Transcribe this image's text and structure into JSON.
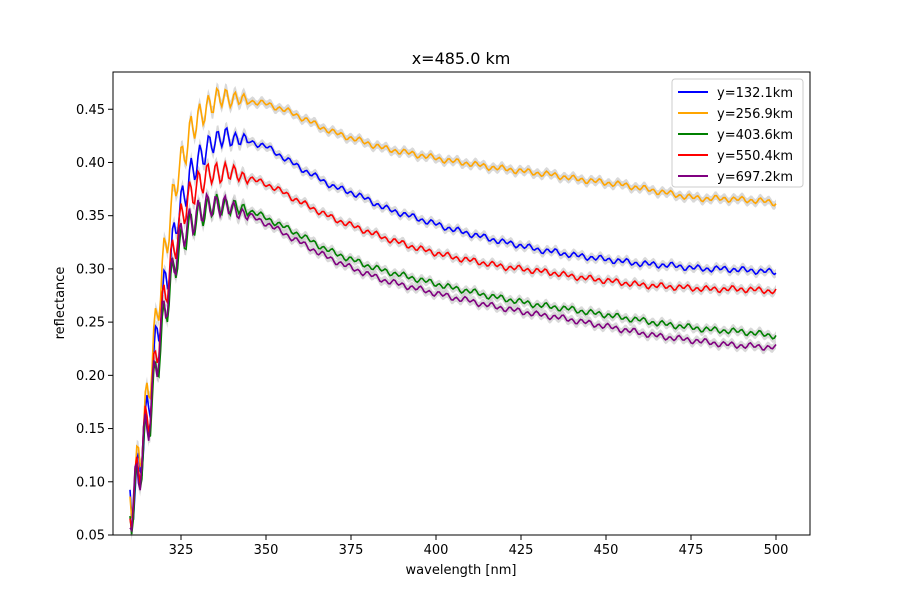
{
  "chart_data": {
    "type": "line",
    "title": "x=485.0 km",
    "xlabel": "wavelength [nm]",
    "ylabel": "reflectance",
    "xlim": [
      305,
      510
    ],
    "ylim": [
      0.05,
      0.485
    ],
    "xticks": [
      325,
      350,
      375,
      400,
      425,
      450,
      475,
      500
    ],
    "yticks": [
      0.05,
      0.1,
      0.15,
      0.2,
      0.25,
      0.3,
      0.35,
      0.4,
      0.45
    ],
    "grid": false,
    "legend_position": "top-right",
    "x": [
      310,
      312,
      314,
      316,
      318,
      320,
      322,
      324,
      326,
      328,
      330,
      332,
      334,
      336,
      338,
      340,
      345,
      350,
      355,
      360,
      365,
      370,
      375,
      380,
      385,
      390,
      395,
      400,
      405,
      410,
      415,
      420,
      425,
      430,
      435,
      440,
      445,
      450,
      455,
      460,
      465,
      470,
      475,
      480,
      485,
      490,
      495,
      500
    ],
    "series": [
      {
        "name": "y=132.1km",
        "color": "#0000ff",
        "values": [
          0.078,
          0.1,
          0.14,
          0.18,
          0.24,
          0.28,
          0.31,
          0.35,
          0.37,
          0.39,
          0.4,
          0.41,
          0.42,
          0.42,
          0.425,
          0.423,
          0.42,
          0.415,
          0.405,
          0.395,
          0.386,
          0.377,
          0.372,
          0.365,
          0.357,
          0.352,
          0.347,
          0.342,
          0.337,
          0.333,
          0.329,
          0.325,
          0.322,
          0.318,
          0.316,
          0.313,
          0.311,
          0.309,
          0.307,
          0.305,
          0.304,
          0.303,
          0.301,
          0.3,
          0.3,
          0.299,
          0.298,
          0.297
        ]
      },
      {
        "name": "y=256.9km",
        "color": "#ffa500",
        "values": [
          0.08,
          0.11,
          0.15,
          0.2,
          0.26,
          0.31,
          0.35,
          0.39,
          0.41,
          0.43,
          0.44,
          0.45,
          0.455,
          0.46,
          0.462,
          0.46,
          0.458,
          0.455,
          0.45,
          0.443,
          0.435,
          0.428,
          0.423,
          0.418,
          0.413,
          0.41,
          0.407,
          0.404,
          0.401,
          0.399,
          0.396,
          0.394,
          0.392,
          0.39,
          0.388,
          0.385,
          0.383,
          0.381,
          0.379,
          0.376,
          0.373,
          0.37,
          0.367,
          0.366,
          0.366,
          0.365,
          0.364,
          0.362
        ]
      },
      {
        "name": "y=403.6km",
        "color": "#008000",
        "values": [
          0.07,
          0.095,
          0.13,
          0.165,
          0.21,
          0.25,
          0.285,
          0.315,
          0.33,
          0.34,
          0.35,
          0.355,
          0.358,
          0.36,
          0.36,
          0.358,
          0.355,
          0.348,
          0.34,
          0.332,
          0.323,
          0.315,
          0.309,
          0.303,
          0.298,
          0.294,
          0.29,
          0.286,
          0.282,
          0.279,
          0.275,
          0.272,
          0.269,
          0.266,
          0.264,
          0.262,
          0.259,
          0.257,
          0.254,
          0.252,
          0.249,
          0.247,
          0.245,
          0.243,
          0.242,
          0.241,
          0.239,
          0.237
        ]
      },
      {
        "name": "y=550.4km",
        "color": "#ff0000",
        "values": [
          0.075,
          0.1,
          0.14,
          0.175,
          0.225,
          0.27,
          0.305,
          0.335,
          0.355,
          0.37,
          0.38,
          0.385,
          0.39,
          0.39,
          0.392,
          0.39,
          0.385,
          0.38,
          0.372,
          0.363,
          0.355,
          0.347,
          0.341,
          0.335,
          0.329,
          0.324,
          0.319,
          0.315,
          0.311,
          0.308,
          0.305,
          0.302,
          0.3,
          0.298,
          0.296,
          0.293,
          0.291,
          0.289,
          0.287,
          0.285,
          0.284,
          0.283,
          0.282,
          0.281,
          0.281,
          0.281,
          0.28,
          0.279
        ]
      },
      {
        "name": "y=697.2km",
        "color": "#800080",
        "values": [
          0.072,
          0.097,
          0.135,
          0.17,
          0.215,
          0.26,
          0.29,
          0.32,
          0.335,
          0.345,
          0.352,
          0.357,
          0.36,
          0.36,
          0.36,
          0.356,
          0.35,
          0.343,
          0.334,
          0.325,
          0.316,
          0.308,
          0.301,
          0.295,
          0.289,
          0.285,
          0.281,
          0.277,
          0.273,
          0.27,
          0.266,
          0.263,
          0.26,
          0.257,
          0.255,
          0.252,
          0.249,
          0.246,
          0.243,
          0.24,
          0.237,
          0.235,
          0.233,
          0.231,
          0.229,
          0.228,
          0.227,
          0.226
        ]
      }
    ]
  }
}
